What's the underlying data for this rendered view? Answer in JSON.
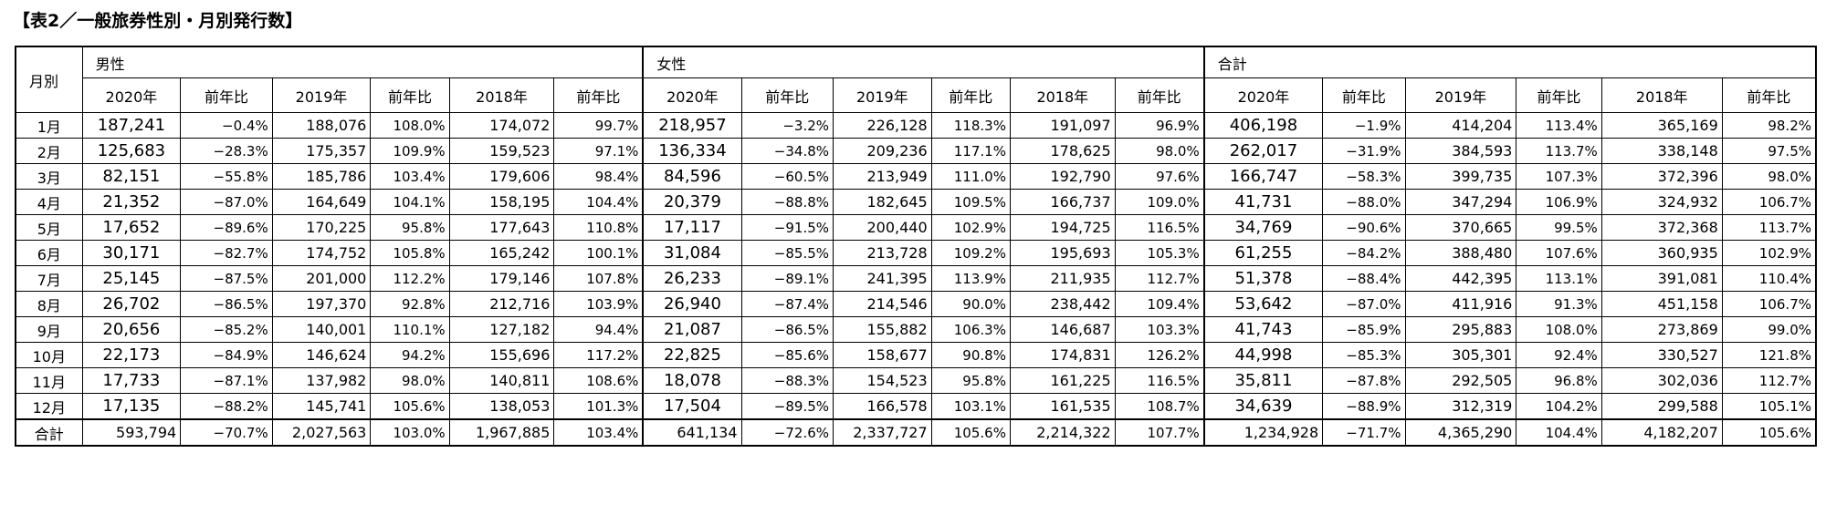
{
  "title": "【表2／一般旅券性別・月別発行数】",
  "headers": {
    "month": "月別",
    "groups": [
      "男性",
      "女性",
      "合計"
    ],
    "columns": [
      "2020年",
      "前年比",
      "2019年",
      "前年比",
      "2018年",
      "前年比"
    ]
  },
  "rows": [
    {
      "month": "1月",
      "cells": [
        "187,241",
        "−0.4%",
        "188,076",
        "108.0%",
        "174,072",
        "99.7%",
        "218,957",
        "−3.2%",
        "226,128",
        "118.3%",
        "191,097",
        "96.9%",
        "406,198",
        "−1.9%",
        "414,204",
        "113.4%",
        "365,169",
        "98.2%"
      ]
    },
    {
      "month": "2月",
      "cells": [
        "125,683",
        "−28.3%",
        "175,357",
        "109.9%",
        "159,523",
        "97.1%",
        "136,334",
        "−34.8%",
        "209,236",
        "117.1%",
        "178,625",
        "98.0%",
        "262,017",
        "−31.9%",
        "384,593",
        "113.7%",
        "338,148",
        "97.5%"
      ]
    },
    {
      "month": "3月",
      "cells": [
        "82,151",
        "−55.8%",
        "185,786",
        "103.4%",
        "179,606",
        "98.4%",
        "84,596",
        "−60.5%",
        "213,949",
        "111.0%",
        "192,790",
        "97.6%",
        "166,747",
        "−58.3%",
        "399,735",
        "107.3%",
        "372,396",
        "98.0%"
      ]
    },
    {
      "month": "4月",
      "cells": [
        "21,352",
        "−87.0%",
        "164,649",
        "104.1%",
        "158,195",
        "104.4%",
        "20,379",
        "−88.8%",
        "182,645",
        "109.5%",
        "166,737",
        "109.0%",
        "41,731",
        "−88.0%",
        "347,294",
        "106.9%",
        "324,932",
        "106.7%"
      ]
    },
    {
      "month": "5月",
      "cells": [
        "17,652",
        "−89.6%",
        "170,225",
        "95.8%",
        "177,643",
        "110.8%",
        "17,117",
        "−91.5%",
        "200,440",
        "102.9%",
        "194,725",
        "116.5%",
        "34,769",
        "−90.6%",
        "370,665",
        "99.5%",
        "372,368",
        "113.7%"
      ]
    },
    {
      "month": "6月",
      "cells": [
        "30,171",
        "−82.7%",
        "174,752",
        "105.8%",
        "165,242",
        "100.1%",
        "31,084",
        "−85.5%",
        "213,728",
        "109.2%",
        "195,693",
        "105.3%",
        "61,255",
        "−84.2%",
        "388,480",
        "107.6%",
        "360,935",
        "102.9%"
      ]
    },
    {
      "month": "7月",
      "cells": [
        "25,145",
        "−87.5%",
        "201,000",
        "112.2%",
        "179,146",
        "107.8%",
        "26,233",
        "−89.1%",
        "241,395",
        "113.9%",
        "211,935",
        "112.7%",
        "51,378",
        "−88.4%",
        "442,395",
        "113.1%",
        "391,081",
        "110.4%"
      ]
    },
    {
      "month": "8月",
      "cells": [
        "26,702",
        "−86.5%",
        "197,370",
        "92.8%",
        "212,716",
        "103.9%",
        "26,940",
        "−87.4%",
        "214,546",
        "90.0%",
        "238,442",
        "109.4%",
        "53,642",
        "−87.0%",
        "411,916",
        "91.3%",
        "451,158",
        "106.7%"
      ]
    },
    {
      "month": "9月",
      "cells": [
        "20,656",
        "−85.2%",
        "140,001",
        "110.1%",
        "127,182",
        "94.4%",
        "21,087",
        "−86.5%",
        "155,882",
        "106.3%",
        "146,687",
        "103.3%",
        "41,743",
        "−85.9%",
        "295,883",
        "108.0%",
        "273,869",
        "99.0%"
      ]
    },
    {
      "month": "10月",
      "cells": [
        "22,173",
        "−84.9%",
        "146,624",
        "94.2%",
        "155,696",
        "117.2%",
        "22,825",
        "−85.6%",
        "158,677",
        "90.8%",
        "174,831",
        "126.2%",
        "44,998",
        "−85.3%",
        "305,301",
        "92.4%",
        "330,527",
        "121.8%"
      ]
    },
    {
      "month": "11月",
      "cells": [
        "17,733",
        "−87.1%",
        "137,982",
        "98.0%",
        "140,811",
        "108.6%",
        "18,078",
        "−88.3%",
        "154,523",
        "95.8%",
        "161,225",
        "116.5%",
        "35,811",
        "−87.8%",
        "292,505",
        "96.8%",
        "302,036",
        "112.7%"
      ]
    },
    {
      "month": "12月",
      "cells": [
        "17,135",
        "−88.2%",
        "145,741",
        "105.6%",
        "138,053",
        "101.3%",
        "17,504",
        "−89.5%",
        "166,578",
        "103.1%",
        "161,535",
        "108.7%",
        "34,639",
        "−88.9%",
        "312,319",
        "104.2%",
        "299,588",
        "105.1%"
      ]
    }
  ],
  "total": {
    "month": "合計",
    "cells": [
      "593,794",
      "−70.7%",
      "2,027,563",
      "103.0%",
      "1,967,885",
      "103.4%",
      "641,134",
      "−72.6%",
      "2,337,727",
      "105.6%",
      "2,214,322",
      "107.7%",
      "1,234,928",
      "−71.7%",
      "4,365,290",
      "104.4%",
      "4,182,207",
      "105.6%"
    ]
  }
}
